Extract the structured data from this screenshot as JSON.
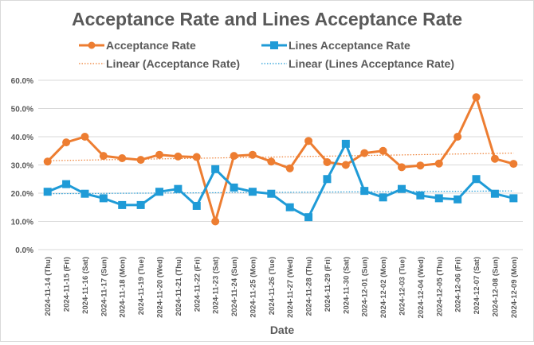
{
  "chart_data": {
    "type": "line",
    "title": "Acceptance Rate and Lines Acceptance Rate",
    "xlabel": "Date",
    "ylabel": "",
    "ylim": [
      0,
      60
    ],
    "yticks": [
      "0.0%",
      "10.0%",
      "20.0%",
      "30.0%",
      "40.0%",
      "50.0%",
      "60.0%"
    ],
    "grid": true,
    "legend_position": "top",
    "categories": [
      "2024-11-14 (Thu)",
      "2024-11-15 (Fri)",
      "2024-11-16 (Sat)",
      "2024-11-17 (Sun)",
      "2024-11-18 (Mon)",
      "2024-11-19 (Tue)",
      "2024-11-20 (Wed)",
      "2024-11-21 (Thu)",
      "2024-11-22 (Fri)",
      "2024-11-23 (Sat)",
      "2024-11-24 (Sun)",
      "2024-11-25 (Mon)",
      "2024-11-26 (Tue)",
      "2024-11-27 (Wed)",
      "2024-11-28 (Thu)",
      "2024-11-29 (Fri)",
      "2024-11-30 (Sat)",
      "2024-12-01 (Sun)",
      "2024-12-02 (Mon)",
      "2024-12-03 (Tue)",
      "2024-12-04 (Wed)",
      "2024-12-05 (Thu)",
      "2024-12-06 (Fri)",
      "2024-12-07 (Sat)",
      "2024-12-08 (Sun)",
      "2024-12-09 (Mon)"
    ],
    "series": [
      {
        "name": "Acceptance Rate",
        "color": "#ED7D31",
        "marker": "circle",
        "values": [
          31.2,
          38.0,
          40.0,
          33.2,
          32.4,
          31.8,
          33.6,
          33.0,
          32.8,
          10.0,
          33.2,
          33.6,
          31.2,
          28.8,
          38.5,
          31.0,
          30.0,
          34.2,
          35.0,
          29.2,
          29.8,
          30.5,
          40.0,
          54.0,
          32.2,
          30.4
        ]
      },
      {
        "name": "Lines Acceptance Rate",
        "color": "#1F9BD7",
        "marker": "square",
        "values": [
          20.5,
          23.2,
          19.8,
          18.2,
          15.8,
          15.8,
          20.5,
          21.5,
          15.5,
          28.5,
          22.0,
          20.5,
          19.8,
          15.0,
          11.5,
          25.0,
          37.5,
          20.8,
          18.5,
          21.5,
          19.2,
          18.2,
          17.8,
          25.0,
          19.8,
          18.2
        ]
      }
    ],
    "trendlines": [
      {
        "name": "Linear (Acceptance Rate)",
        "color": "#ED7D31",
        "start": 31.5,
        "end": 34.2
      },
      {
        "name": "Linear (Lines Acceptance Rate)",
        "color": "#1F9BD7",
        "start": 19.8,
        "end": 20.8
      }
    ]
  }
}
